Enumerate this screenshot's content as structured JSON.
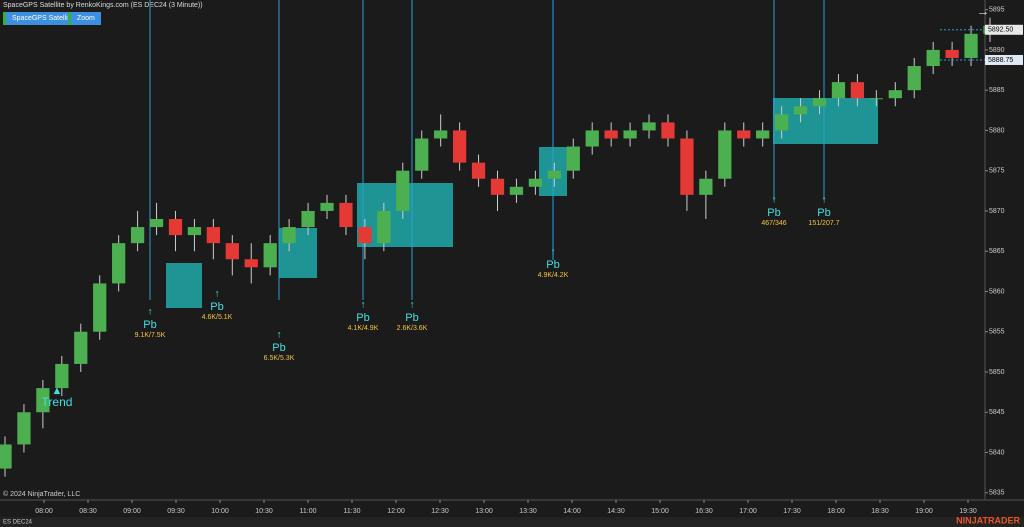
{
  "header": {
    "title": "SpaceGPS Satellite by RenkoKings.com (ES DEC24 (3 Minute))",
    "buttons": [
      "SpaceGPS Satellite",
      "Zoom"
    ]
  },
  "chart_data": {
    "type": "candlestick",
    "open": [
      5838,
      5841,
      5845,
      5848,
      5851,
      5855,
      5861,
      5866,
      5868,
      5869,
      5867,
      5868,
      5866,
      5864,
      5863,
      5866,
      5868,
      5870,
      5871,
      5868,
      5866,
      5870,
      5875,
      5879,
      5880,
      5876,
      5874,
      5872,
      5873,
      5874,
      5875,
      5878,
      5880,
      5879,
      5880,
      5881,
      5879,
      5872,
      5874,
      5880,
      5879,
      5880,
      5882,
      5883,
      5884,
      5886,
      5884,
      5884,
      5885,
      5888,
      5890,
      5889,
      5892
    ],
    "high": [
      5842,
      5846,
      5849,
      5852,
      5856,
      5862,
      5867,
      5870,
      5871,
      5870,
      5869,
      5869,
      5867,
      5866,
      5867,
      5869,
      5871,
      5872,
      5872,
      5869,
      5871,
      5876,
      5880,
      5882,
      5881,
      5877,
      5875,
      5874,
      5875,
      5876,
      5879,
      5881,
      5881,
      5881,
      5882,
      5882,
      5880,
      5875,
      5881,
      5881,
      5881,
      5883,
      5884,
      5885,
      5887,
      5887,
      5885,
      5886,
      5889,
      5891,
      5891,
      5893,
      5894
    ],
    "low": [
      5837,
      5840,
      5843,
      5847,
      5850,
      5854,
      5860,
      5865,
      5867,
      5865,
      5865,
      5864,
      5862,
      5861,
      5862,
      5865,
      5867,
      5869,
      5867,
      5864,
      5865,
      5869,
      5874,
      5878,
      5875,
      5873,
      5870,
      5871,
      5872,
      5873,
      5874,
      5877,
      5878,
      5878,
      5879,
      5878,
      5870,
      5869,
      5873,
      5878,
      5878,
      5879,
      5881,
      5882,
      5883,
      5883,
      5883,
      5883,
      5884,
      5887,
      5888,
      5888,
      5891
    ],
    "close": [
      5841,
      5845,
      5848,
      5851,
      5855,
      5861,
      5866,
      5868,
      5869,
      5867,
      5868,
      5866,
      5864,
      5863,
      5866,
      5868,
      5870,
      5871,
      5868,
      5866,
      5870,
      5875,
      5879,
      5880,
      5876,
      5874,
      5872,
      5873,
      5874,
      5875,
      5878,
      5880,
      5879,
      5880,
      5881,
      5879,
      5872,
      5874,
      5880,
      5879,
      5880,
      5882,
      5883,
      5884,
      5886,
      5884,
      5884,
      5885,
      5888,
      5890,
      5889,
      5892,
      5893
    ],
    "up_color": "#4caf50",
    "down_color": "#e53935",
    "ylim": [
      5834.1,
      5896.2
    ],
    "yticks": [
      5835,
      5840,
      5845,
      5850,
      5855,
      5860,
      5865,
      5870,
      5875,
      5880,
      5885,
      5890,
      5895
    ],
    "time_labels": [
      "08:00",
      "08:30",
      "09:00",
      "09:30",
      "10:00",
      "10:30",
      "11:00",
      "11:30",
      "12:00",
      "12:30",
      "13:00",
      "13:30",
      "14:00",
      "14:30",
      "15:00",
      "16:30",
      "17:00",
      "17:30",
      "18:00",
      "18:30",
      "19:00",
      "19:30"
    ],
    "price_markers": [
      {
        "value": 5892.5,
        "label": "5892.50"
      },
      {
        "value": 5888.75,
        "label": "5888.75"
      }
    ],
    "annotations": [
      {
        "text": "Pb",
        "detail": "9.1K/7.5K"
      },
      {
        "text": "Pb",
        "detail": "4.6K/5.1K"
      },
      {
        "text": "Pb",
        "detail": "6.5K/5.3K"
      },
      {
        "text": "Pb",
        "detail": "4.1K/4.9K"
      },
      {
        "text": "Pb",
        "detail": "2.6K/3.6K"
      },
      {
        "text": "Pb",
        "detail": "4.9K/4.2K"
      },
      {
        "text": "Pb",
        "detail": "467/346"
      },
      {
        "text": "Pb",
        "detail": "151/207.7"
      }
    ],
    "trend_label": "Trend"
  },
  "footer": {
    "copyright": "© 2024 NinjaTrader, LLC",
    "instrument": "ES DEC24",
    "brand": "NINJATRADER"
  }
}
